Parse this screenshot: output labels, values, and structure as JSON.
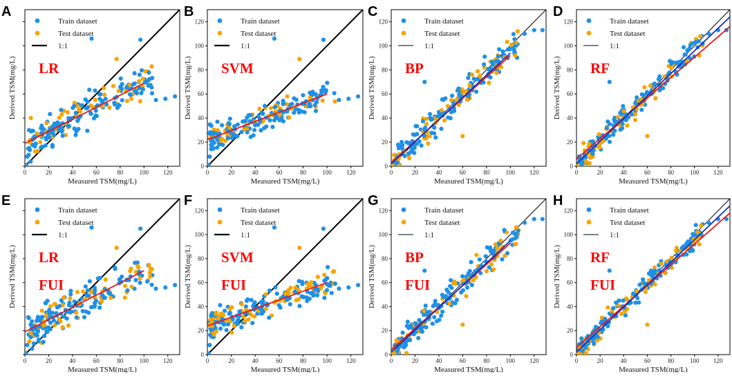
{
  "figure": {
    "palette": {
      "train": "#1e90e6",
      "test": "#f5a500",
      "one_to_one": "#000000",
      "fit_red": "#e8151b",
      "fit_blue": "#1a2fb8"
    }
  },
  "chart_data": [
    {
      "panel": "A",
      "type": "scatter",
      "model": "LR",
      "label2": "",
      "xlabel": "Measured TSM(mg/L)",
      "ylabel": "Derived TSM(mg/L)",
      "xlim": [
        0,
        130
      ],
      "ylim": [
        0,
        130
      ],
      "xticks": [
        "0",
        "20",
        "40",
        "60",
        "80",
        "100",
        "120"
      ],
      "yticks": [
        "0",
        "20",
        "40",
        "60",
        "80",
        "100",
        "120"
      ],
      "show_yticks": false,
      "legend": [
        "Train dataset",
        "Test dataset",
        "1:1"
      ],
      "legend_line_width": 2.2,
      "one_to_one_width": 2.0,
      "fits": [
        {
          "color": "red",
          "x": [
            0,
            100
          ],
          "y": [
            19,
            69
          ]
        }
      ],
      "scatter_style": "flat",
      "spread": 10,
      "seed": 11
    },
    {
      "panel": "B",
      "type": "scatter",
      "model": "SVM",
      "label2": "",
      "xlabel": "Measured TSM(mg/L)",
      "ylabel": "Derived TSM(mg/L)",
      "xlim": [
        0,
        130
      ],
      "ylim": [
        0,
        130
      ],
      "xticks": [
        "0",
        "20",
        "40",
        "60",
        "80",
        "100",
        "120"
      ],
      "yticks": [
        "0",
        "20",
        "40",
        "60",
        "80",
        "100",
        "120"
      ],
      "show_yticks": true,
      "legend": [
        "Train dataset",
        "Test dataset",
        "1:1"
      ],
      "legend_line_width": 2.2,
      "one_to_one_width": 2.0,
      "fits": [
        {
          "color": "red",
          "x": [
            0,
            100
          ],
          "y": [
            22,
            60
          ]
        }
      ],
      "scatter_style": "flat",
      "spread": 8,
      "seed": 23
    },
    {
      "panel": "C",
      "type": "scatter",
      "model": "BP",
      "label2": "",
      "xlabel": "Measured TSM(mg/L)",
      "ylabel": "Derived TSM(mg/L)",
      "xlim": [
        0,
        130
      ],
      "ylim": [
        0,
        130
      ],
      "xticks": [
        "0",
        "20",
        "40",
        "60",
        "80",
        "100",
        "120"
      ],
      "yticks": [
        "0",
        "20",
        "40",
        "60",
        "80",
        "100",
        "120"
      ],
      "show_yticks": true,
      "legend": [
        "Train dataset",
        "Test dataset",
        "1:1"
      ],
      "legend_line_width": 1.0,
      "one_to_one_width": 1.0,
      "fits": [
        {
          "color": "red",
          "x": [
            0,
            100
          ],
          "y": [
            3,
            92
          ]
        },
        {
          "color": "blue",
          "x": [
            0,
            100
          ],
          "y": [
            2,
            94
          ]
        }
      ],
      "scatter_style": "diag",
      "spread": 8,
      "seed": 37
    },
    {
      "panel": "D",
      "type": "scatter",
      "model": "RF",
      "label2": "",
      "xlabel": "Measured TSM(mg/L)",
      "ylabel": "Derived TSM(mg/L)",
      "xlim": [
        0,
        130
      ],
      "ylim": [
        0,
        130
      ],
      "xticks": [
        "0",
        "20",
        "40",
        "60",
        "80",
        "100",
        "120"
      ],
      "yticks": [
        "0",
        "20",
        "40",
        "60",
        "80",
        "100",
        "120"
      ],
      "show_yticks": true,
      "legend": [
        "Train dataset",
        "Test dataset",
        "1:1"
      ],
      "legend_line_width": 1.0,
      "one_to_one_width": 1.0,
      "fits": [
        {
          "color": "red",
          "x": [
            0,
            130
          ],
          "y": [
            6,
            116
          ]
        },
        {
          "color": "blue",
          "x": [
            0,
            130
          ],
          "y": [
            2,
            124
          ]
        }
      ],
      "scatter_style": "diag",
      "spread": 6,
      "seed": 41
    },
    {
      "panel": "E",
      "type": "scatter",
      "model": "LR",
      "label2": "FUI",
      "xlabel": "Measured TSM(mg/L)",
      "ylabel": "Derived TSM(mg/L)",
      "xlim": [
        0,
        130
      ],
      "ylim": [
        0,
        130
      ],
      "xticks": [
        "0",
        "20",
        "40",
        "60",
        "80",
        "100",
        "120"
      ],
      "yticks": [
        "0",
        "20",
        "40",
        "60",
        "80",
        "100",
        "120"
      ],
      "show_yticks": false,
      "legend": [
        "Train dataset",
        "Test dataset",
        "1:1"
      ],
      "legend_line_width": 2.2,
      "one_to_one_width": 2.0,
      "fits": [
        {
          "color": "red",
          "x": [
            0,
            100
          ],
          "y": [
            19,
            70
          ]
        }
      ],
      "scatter_style": "flat",
      "spread": 11,
      "seed": 53
    },
    {
      "panel": "F",
      "type": "scatter",
      "model": "SVM",
      "label2": "FUI",
      "xlabel": "Measured TSM(mg/L)",
      "ylabel": "Derived TSM(mg/L)",
      "xlim": [
        0,
        130
      ],
      "ylim": [
        0,
        130
      ],
      "xticks": [
        "0",
        "20",
        "40",
        "60",
        "80",
        "100",
        "120"
      ],
      "yticks": [
        "0",
        "20",
        "40",
        "60",
        "80",
        "100",
        "120"
      ],
      "show_yticks": true,
      "legend": [
        "Train dataset",
        "Test dataset",
        "1:1"
      ],
      "legend_line_width": 2.2,
      "one_to_one_width": 2.0,
      "fits": [
        {
          "color": "red",
          "x": [
            0,
            100
          ],
          "y": [
            24,
            60
          ]
        }
      ],
      "scatter_style": "flat",
      "spread": 8,
      "seed": 67
    },
    {
      "panel": "G",
      "type": "scatter",
      "model": "BP",
      "label2": "FUI",
      "xlabel": "Measured TSM(mg/L)",
      "ylabel": "Derived TSM(mg/L)",
      "xlim": [
        0,
        130
      ],
      "ylim": [
        0,
        130
      ],
      "xticks": [
        "0",
        "20",
        "40",
        "60",
        "80",
        "100",
        "120"
      ],
      "yticks": [
        "0",
        "20",
        "40",
        "60",
        "80",
        "100",
        "120"
      ],
      "show_yticks": true,
      "legend": [
        "Train dataset",
        "Test dataset",
        "1:1"
      ],
      "legend_line_width": 1.0,
      "one_to_one_width": 1.0,
      "fits": [
        {
          "color": "red",
          "x": [
            0,
            100
          ],
          "y": [
            4,
            93
          ]
        },
        {
          "color": "blue",
          "x": [
            0,
            100
          ],
          "y": [
            2,
            95
          ]
        }
      ],
      "scatter_style": "diag",
      "spread": 8,
      "seed": 79
    },
    {
      "panel": "H",
      "type": "scatter",
      "model": "RF",
      "label2": "FUI",
      "xlabel": "Measured TSM(mg/L)",
      "ylabel": "Derived TSM(mg/L)",
      "xlim": [
        0,
        130
      ],
      "ylim": [
        0,
        130
      ],
      "xticks": [
        "0",
        "20",
        "40",
        "60",
        "80",
        "100",
        "120"
      ],
      "yticks": [
        "0",
        "20",
        "40",
        "60",
        "80",
        "100",
        "120"
      ],
      "show_yticks": true,
      "legend": [
        "Train dataset",
        "Test dataset",
        "1:1"
      ],
      "legend_line_width": 1.0,
      "one_to_one_width": 1.0,
      "fits": [
        {
          "color": "red",
          "x": [
            0,
            130
          ],
          "y": [
            6,
            118
          ]
        },
        {
          "color": "blue",
          "x": [
            0,
            130
          ],
          "y": [
            2,
            124
          ]
        }
      ],
      "scatter_style": "diag",
      "spread": 6,
      "seed": 97
    }
  ]
}
